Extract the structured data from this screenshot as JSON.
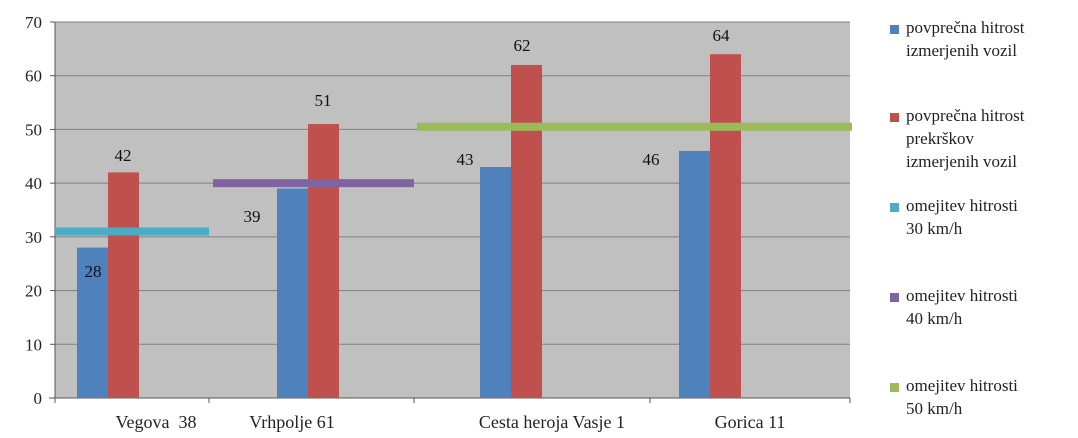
{
  "chart_data": {
    "type": "bar",
    "title": "",
    "xlabel": "",
    "ylabel": "",
    "ylim": [
      0,
      70
    ],
    "yticks": [
      0,
      10,
      20,
      30,
      40,
      50,
      60,
      70
    ],
    "grid": true,
    "legend_position": "right",
    "categories": [
      "Vegova  38",
      "Vrhpolje 61",
      "Cesta heroja Vasje 1",
      "Gorica 11"
    ],
    "series": [
      {
        "name": "povprečna hitrost izmerjenih vozil",
        "name_lines": [
          "povprečna hitrost",
          "izmerjenih vozil"
        ],
        "color": "#4F81BD",
        "values": [
          28,
          39,
          43,
          46
        ],
        "labels": [
          "28",
          "39",
          "43",
          "46"
        ]
      },
      {
        "name": "povprečna hitrost prekrškov izmerjenih vozil",
        "name_lines": [
          "povprečna hitrost",
          "prekrškov",
          "izmerjenih vozil"
        ],
        "color": "#C0504D",
        "values": [
          42,
          51,
          62,
          64
        ],
        "labels": [
          "42",
          "51",
          "62",
          "64"
        ]
      }
    ],
    "limit_lines": [
      {
        "name": "omejitev hitrosti 30 km/h",
        "name_lines": [
          "omejitev hitrosti",
          "30 km/h"
        ],
        "color": "#4BACC6",
        "value": 31,
        "from_category": 0,
        "to_category": 0
      },
      {
        "name": "omejitev hitrosti 40 km/h",
        "name_lines": [
          "omejitev hitrosti",
          "40 km/h"
        ],
        "color": "#8064A2",
        "value": 40,
        "from_category": 1,
        "to_category": 1
      },
      {
        "name": "omejitev hitrosti 50 km/h",
        "name_lines": [
          "omejitev hitrosti",
          "50 km/h"
        ],
        "color": "#9BBB59",
        "value": 50.5,
        "from_category": 2,
        "to_category": 3
      }
    ],
    "colors": {
      "plot_background": "#C0C0C0",
      "gridline": "#808080",
      "axis_text": "#222222"
    }
  }
}
